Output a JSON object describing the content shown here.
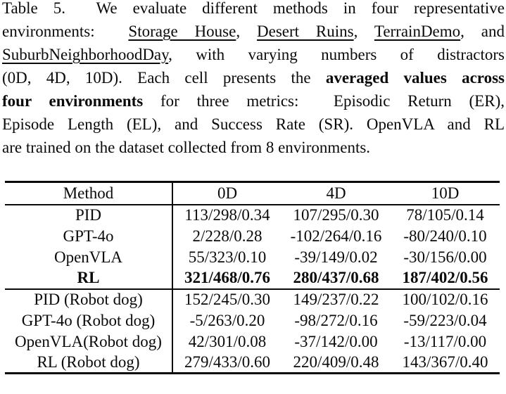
{
  "page": {
    "background": "#ffffff",
    "text_color": "#0a0a0a"
  },
  "caption": {
    "label": "Table 5.",
    "lines": [
      {
        "justify": true,
        "segments": [
          {
            "text": "Table 5.  We evaluate different methods in four representative"
          }
        ]
      },
      {
        "justify": true,
        "segments": [
          {
            "text": "environments:  "
          },
          {
            "text": "Storage House",
            "underline": true
          },
          {
            "text": ", "
          },
          {
            "text": "Desert Ruins",
            "underline": true
          },
          {
            "text": ", "
          },
          {
            "text": "TerrainDemo",
            "underline": true
          },
          {
            "text": ", and"
          }
        ]
      },
      {
        "justify": true,
        "segments": [
          {
            "text": "SuburbNeighborhoodDay",
            "underline": true
          },
          {
            "text": ", with varying numbers of distractors"
          }
        ]
      },
      {
        "justify": true,
        "segments": [
          {
            "text": "(0D, 4D, 10D). Each cell presents the "
          },
          {
            "text": "averaged values across",
            "bold": true
          }
        ]
      },
      {
        "justify": true,
        "segments": [
          {
            "text": "four environments",
            "bold": true
          },
          {
            "text": " for three metrics:  Episodic Return (ER),"
          }
        ]
      },
      {
        "justify": true,
        "segments": [
          {
            "text": "Episode Length (EL), and Success Rate (SR). OpenVLA and RL"
          }
        ]
      },
      {
        "justify": false,
        "segments": [
          {
            "text": "are trained on the dataset collected from 8 environments."
          }
        ]
      }
    ]
  },
  "table": {
    "headers": [
      "Method",
      "0D",
      "4D",
      "10D"
    ],
    "rows": [
      {
        "method": "PID",
        "cells": [
          "113/298/0.34",
          "107/295/0.30",
          "78/105/0.14"
        ],
        "bold": false,
        "group_start": false
      },
      {
        "method": "GPT-4o",
        "cells": [
          "2/228/0.28",
          "-102/264/0.16",
          "-80/240/0.10"
        ],
        "bold": false,
        "group_start": false
      },
      {
        "method": "OpenVLA",
        "cells": [
          "55/323/0.10",
          "-39/149/0.02",
          "-30/156/0.00"
        ],
        "bold": false,
        "group_start": false
      },
      {
        "method": "RL",
        "cells": [
          "321/468/0.76",
          "280/437/0.68",
          "187/402/0.56"
        ],
        "bold": true,
        "group_start": false
      },
      {
        "method": "PID (Robot dog)",
        "cells": [
          "152/245/0.30",
          "149/237/0.22",
          "100/102/0.16"
        ],
        "bold": false,
        "group_start": true
      },
      {
        "method": "GPT-4o (Robot dog)",
        "cells": [
          "-5/263/0.20",
          "-98/272/0.16",
          "-59/223/0.04"
        ],
        "bold": false,
        "group_start": false
      },
      {
        "method": "OpenVLA(Robot dog)",
        "cells": [
          "42/301/0.08",
          "-37/142/0.00",
          "-13/117/0.00"
        ],
        "bold": false,
        "group_start": false
      },
      {
        "method": "RL (Robot dog)",
        "cells": [
          "279/433/0.60",
          "220/409/0.48",
          "143/367/0.40"
        ],
        "bold": false,
        "group_start": false
      }
    ]
  }
}
